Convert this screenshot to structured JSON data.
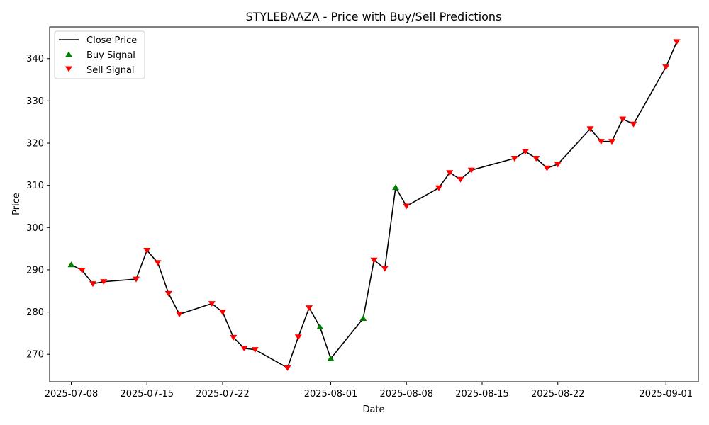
{
  "chart_data": {
    "type": "line",
    "title": "STYLEBAAZA - Price with Buy/Sell Predictions",
    "xlabel": "Date",
    "ylabel": "Price",
    "xlim": [
      "2025-07-06",
      "2025-09-04"
    ],
    "ylim": [
      263.5,
      347.5
    ],
    "x_ticks": [
      "2025-07-08",
      "2025-07-15",
      "2025-07-22",
      "2025-08-01",
      "2025-08-08",
      "2025-08-15",
      "2025-08-22",
      "2025-09-01"
    ],
    "y_ticks": [
      270,
      280,
      290,
      300,
      310,
      320,
      330,
      340
    ],
    "grid": false,
    "legend": {
      "placement": "top-left",
      "entries": [
        "Close Price",
        "Buy Signal",
        "Sell Signal"
      ]
    },
    "colors": {
      "close": "#000000",
      "buy": "#008000",
      "sell": "#ff0000"
    },
    "series": [
      {
        "name": "Close Price",
        "points": [
          [
            "2025-07-08",
            291.2
          ],
          [
            "2025-07-09",
            289.9
          ],
          [
            "2025-07-10",
            286.7
          ],
          [
            "2025-07-11",
            287.2
          ],
          [
            "2025-07-14",
            287.8
          ],
          [
            "2025-07-15",
            294.6
          ],
          [
            "2025-07-16",
            291.7
          ],
          [
            "2025-07-17",
            284.4
          ],
          [
            "2025-07-18",
            279.5
          ],
          [
            "2025-07-21",
            282.0
          ],
          [
            "2025-07-22",
            280.0
          ],
          [
            "2025-07-23",
            274.0
          ],
          [
            "2025-07-24",
            271.4
          ],
          [
            "2025-07-25",
            271.1
          ],
          [
            "2025-07-28",
            266.8
          ],
          [
            "2025-07-29",
            274.1
          ],
          [
            "2025-07-30",
            281.0
          ],
          [
            "2025-07-31",
            276.5
          ],
          [
            "2025-08-01",
            269.0
          ],
          [
            "2025-08-04",
            278.5
          ],
          [
            "2025-08-05",
            292.3
          ],
          [
            "2025-08-06",
            290.3
          ],
          [
            "2025-08-07",
            309.5
          ],
          [
            "2025-08-08",
            305.1
          ],
          [
            "2025-08-11",
            309.4
          ],
          [
            "2025-08-12",
            313.0
          ],
          [
            "2025-08-13",
            311.4
          ],
          [
            "2025-08-14",
            313.6
          ],
          [
            "2025-08-18",
            316.4
          ],
          [
            "2025-08-19",
            318.0
          ],
          [
            "2025-08-20",
            316.4
          ],
          [
            "2025-08-21",
            314.1
          ],
          [
            "2025-08-22",
            315.0
          ],
          [
            "2025-08-25",
            323.4
          ],
          [
            "2025-08-26",
            320.4
          ],
          [
            "2025-08-27",
            320.4
          ],
          [
            "2025-08-28",
            325.7
          ],
          [
            "2025-08-29",
            324.5
          ],
          [
            "2025-09-01",
            338.0
          ],
          [
            "2025-09-02",
            344.0
          ]
        ]
      },
      {
        "name": "Buy Signal",
        "points": [
          [
            "2025-07-08",
            291.2
          ],
          [
            "2025-07-31",
            276.5
          ],
          [
            "2025-08-01",
            269.0
          ],
          [
            "2025-08-04",
            278.5
          ],
          [
            "2025-08-07",
            309.5
          ]
        ]
      },
      {
        "name": "Sell Signal",
        "points": [
          [
            "2025-07-09",
            289.9
          ],
          [
            "2025-07-10",
            286.7
          ],
          [
            "2025-07-11",
            287.2
          ],
          [
            "2025-07-14",
            287.8
          ],
          [
            "2025-07-15",
            294.6
          ],
          [
            "2025-07-16",
            291.7
          ],
          [
            "2025-07-17",
            284.4
          ],
          [
            "2025-07-18",
            279.5
          ],
          [
            "2025-07-21",
            282.0
          ],
          [
            "2025-07-22",
            280.0
          ],
          [
            "2025-07-23",
            274.0
          ],
          [
            "2025-07-24",
            271.4
          ],
          [
            "2025-07-25",
            271.1
          ],
          [
            "2025-07-28",
            266.8
          ],
          [
            "2025-07-29",
            274.1
          ],
          [
            "2025-07-30",
            281.0
          ],
          [
            "2025-08-05",
            292.3
          ],
          [
            "2025-08-06",
            290.3
          ],
          [
            "2025-08-08",
            305.1
          ],
          [
            "2025-08-11",
            309.4
          ],
          [
            "2025-08-12",
            313.0
          ],
          [
            "2025-08-13",
            311.4
          ],
          [
            "2025-08-14",
            313.6
          ],
          [
            "2025-08-18",
            316.4
          ],
          [
            "2025-08-19",
            318.0
          ],
          [
            "2025-08-20",
            316.4
          ],
          [
            "2025-08-21",
            314.1
          ],
          [
            "2025-08-22",
            315.0
          ],
          [
            "2025-08-25",
            323.4
          ],
          [
            "2025-08-26",
            320.4
          ],
          [
            "2025-08-27",
            320.4
          ],
          [
            "2025-08-28",
            325.7
          ],
          [
            "2025-08-29",
            324.5
          ],
          [
            "2025-09-01",
            338.0
          ],
          [
            "2025-09-02",
            344.0
          ]
        ]
      }
    ]
  }
}
